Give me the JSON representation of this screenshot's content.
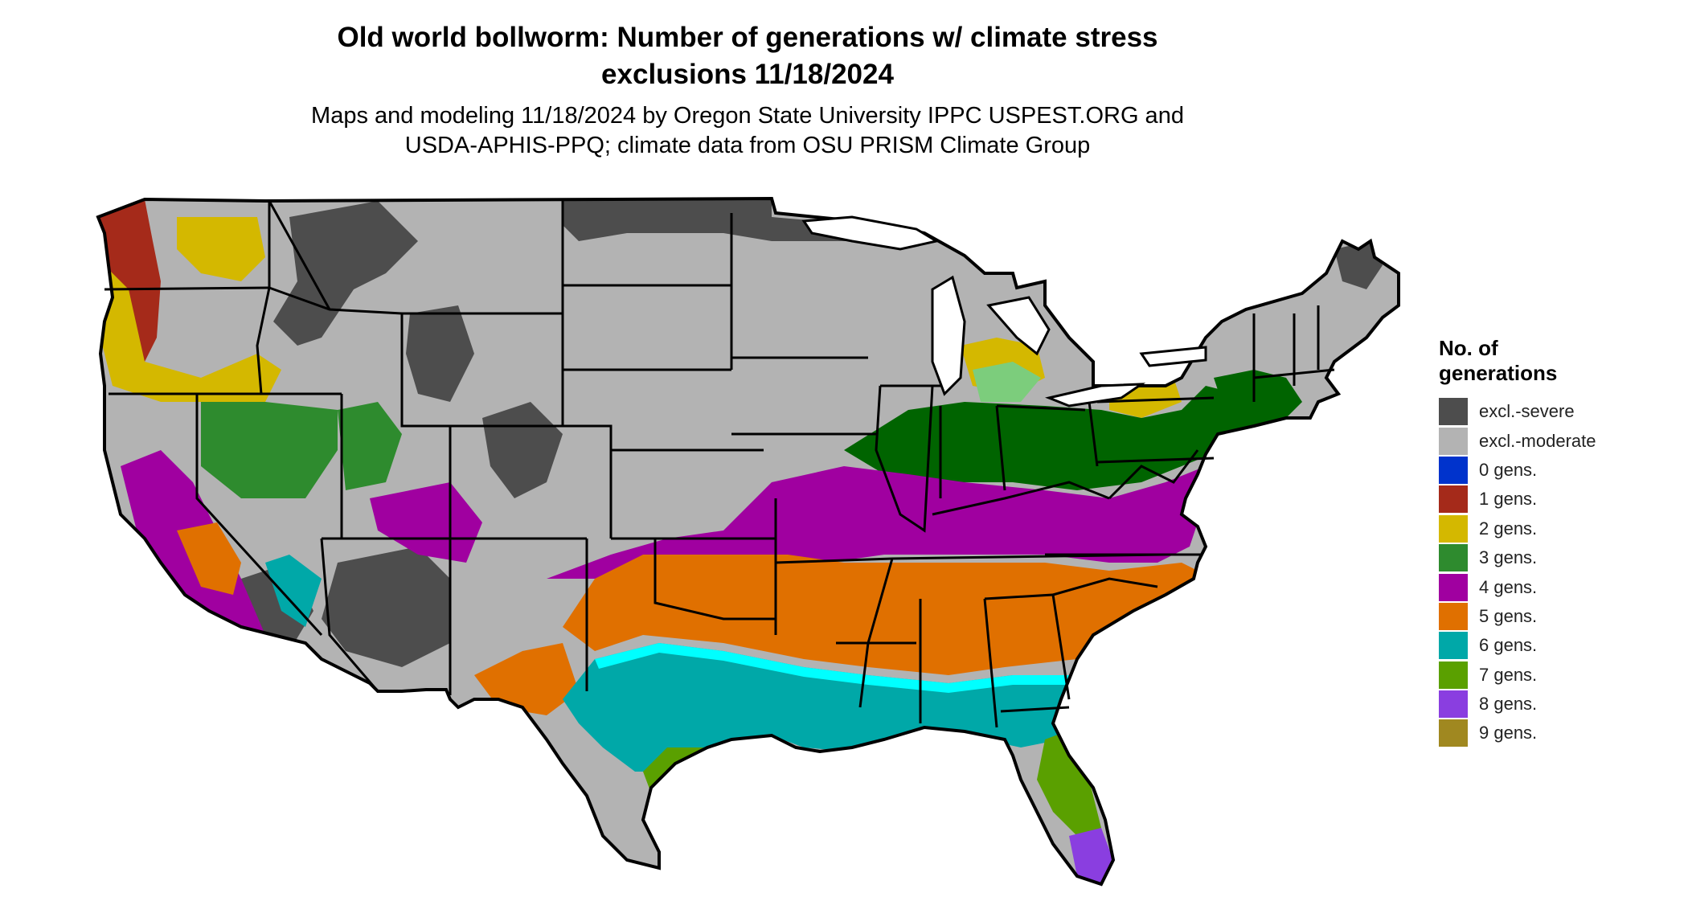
{
  "header": {
    "title_line1": "Old world bollworm: Number of generations w/ climate stress",
    "title_line2": "exclusions 11/18/2024",
    "subtitle_line1": "Maps and modeling 11/18/2024 by Oregon State University IPPC USPEST.ORG and",
    "subtitle_line2": "USDA-APHIS-PPQ; climate data from OSU PRISM Climate Group"
  },
  "legend": {
    "title_line1": "No. of",
    "title_line2": "generations",
    "items": [
      {
        "label": "excl.-severe",
        "color": "#4d4d4d"
      },
      {
        "label": "excl.-moderate",
        "color": "#b3b3b3"
      },
      {
        "label": "0 gens.",
        "color": "#0033cc"
      },
      {
        "label": "1 gens.",
        "color": "#a52a1a"
      },
      {
        "label": "2 gens.",
        "color": "#d4b800"
      },
      {
        "label": "3 gens.",
        "color": "#2e8b2e"
      },
      {
        "label": "4 gens.",
        "color": "#a000a0"
      },
      {
        "label": "5 gens.",
        "color": "#e07000"
      },
      {
        "label": "6 gens.",
        "color": "#00a8a8"
      },
      {
        "label": "7 gens.",
        "color": "#5aa000"
      },
      {
        "label": "8 gens.",
        "color": "#8a3ee0"
      },
      {
        "label": "9 gens.",
        "color": "#a08820"
      }
    ]
  },
  "map": {
    "region": "Contiguous United States",
    "colors": {
      "dark_green": "#006400",
      "light_green": "#7ccd7c",
      "magenta": "#ff00ff",
      "cyan": "#00ffff",
      "yellow_green": "#adff2f",
      "border": "#000000"
    }
  }
}
